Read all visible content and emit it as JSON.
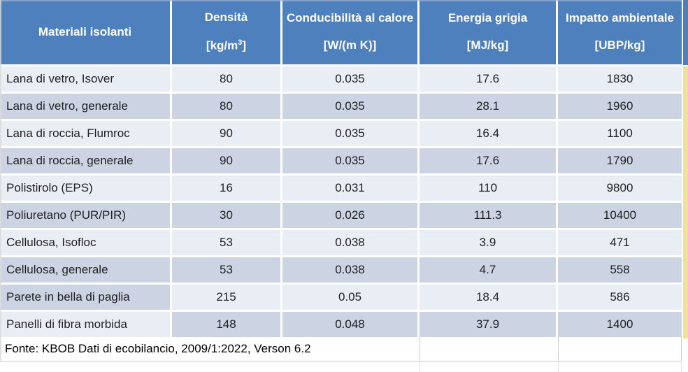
{
  "colors": {
    "header_bg": "#4d80bd",
    "header_text": "#ffffff",
    "row_light": "#e9edf4",
    "row_dark": "#ccd4e3",
    "body_text": "#1f1f1f",
    "footer_border": "#cfcfcf",
    "side_stripe": "#f0e195"
  },
  "table": {
    "header": {
      "cols": [
        {
          "title": "Materiali isolanti",
          "unit_main": "",
          "unit_sup": "",
          "unit_end": ""
        },
        {
          "title": "Densità",
          "unit_main": "[kg/m",
          "unit_sup": "3",
          "unit_end": "]"
        },
        {
          "title": "Conducibilità al calore",
          "unit_main": "[W/(m K)]",
          "unit_sup": "",
          "unit_end": ""
        },
        {
          "title": "Energia grigia",
          "unit_main": "[MJ/kg]",
          "unit_sup": "",
          "unit_end": ""
        },
        {
          "title": "Impatto ambientale",
          "unit_main": "[UBP/kg]",
          "unit_sup": "",
          "unit_end": ""
        }
      ]
    },
    "rows": [
      {
        "material": "Lana di vetro, Isover",
        "density": "80",
        "conductivity": "0.035",
        "grey_energy": "17.6",
        "impact": "1830"
      },
      {
        "material": "Lana di vetro, generale",
        "density": "80",
        "conductivity": "0.035",
        "grey_energy": "28.1",
        "impact": "1960"
      },
      {
        "material": "Lana di roccia, Flumroc",
        "density": "90",
        "conductivity": "0.035",
        "grey_energy": "16.4",
        "impact": "1100"
      },
      {
        "material": "Lana di roccia, generale",
        "density": "90",
        "conductivity": "0.035",
        "grey_energy": "17.6",
        "impact": "1790"
      },
      {
        "material": "Polistirolo (EPS)",
        "density": "16",
        "conductivity": "0.031",
        "grey_energy": "110",
        "impact": "9800"
      },
      {
        "material": "Poliuretano (PUR/PIR)",
        "density": "30",
        "conductivity": "0.026",
        "grey_energy": "111.3",
        "impact": "10400"
      },
      {
        "material": "Cellulosa, Isofloc",
        "density": "53",
        "conductivity": "0.038",
        "grey_energy": "3.9",
        "impact": "471"
      },
      {
        "material": "Cellulosa, generale",
        "density": "53",
        "conductivity": "0.038",
        "grey_energy": "4.7",
        "impact": "558"
      },
      {
        "material": "Parete in bella di paglia",
        "density": "215",
        "conductivity": "0.05",
        "grey_energy": "18.4",
        "impact": "586"
      },
      {
        "material": "Panelli di fibra morbida",
        "density": "148",
        "conductivity": "0.048",
        "grey_energy": "37.9",
        "impact": "1400"
      }
    ],
    "footer": {
      "source_note": "Fonte: KBOB Dati di ecobilancio, 2009/1:2022, Verson 6.2"
    }
  }
}
